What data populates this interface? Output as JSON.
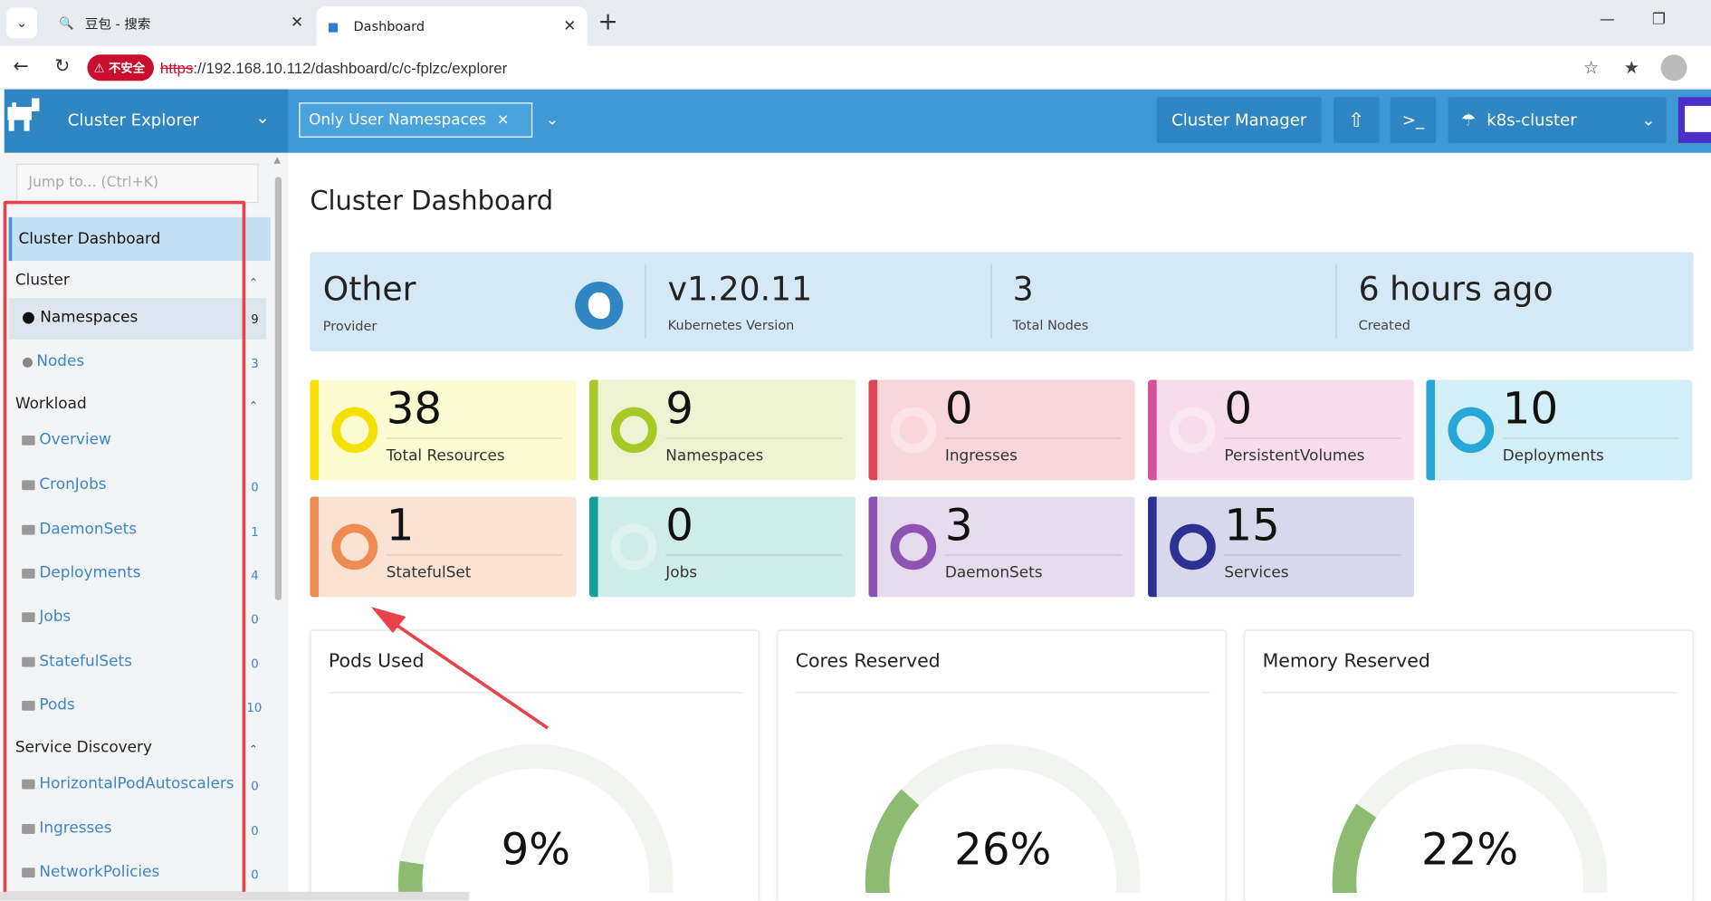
{
  "browser": {
    "tabs": [
      {
        "title": "豆包 - 搜索"
      },
      {
        "title": "Dashboard"
      }
    ],
    "url_scheme": "https",
    "url_rest": "://192.168.10.112/dashboard/c/c-fplzc/explorer",
    "insecure_label": "不安全"
  },
  "header": {
    "app_title": "Cluster Explorer",
    "namespace_filter": "Only User Namespaces",
    "cluster_manager": "Cluster Manager",
    "cluster_name": "k8s-cluster"
  },
  "sidebar": {
    "jump_placeholder": "Jump to... (Ctrl+K)",
    "active_item": "Cluster Dashboard",
    "groups": [
      {
        "label": "Cluster"
      },
      {
        "label": "Workload"
      },
      {
        "label": "Service Discovery"
      }
    ],
    "cluster_items": [
      {
        "label": "Namespaces",
        "count": "9"
      },
      {
        "label": "Nodes",
        "count": "3"
      }
    ],
    "workload_items": [
      {
        "label": "Overview",
        "count": ""
      },
      {
        "label": "CronJobs",
        "count": "0"
      },
      {
        "label": "DaemonSets",
        "count": "1"
      },
      {
        "label": "Deployments",
        "count": "4"
      },
      {
        "label": "Jobs",
        "count": "0"
      },
      {
        "label": "StatefulSets",
        "count": "0"
      },
      {
        "label": "Pods",
        "count": "10"
      }
    ],
    "discovery_items": [
      {
        "label": "HorizontalPodAutoscalers",
        "count": "0"
      },
      {
        "label": "Ingresses",
        "count": "0"
      },
      {
        "label": "NetworkPolicies",
        "count": "0"
      }
    ]
  },
  "main": {
    "title": "Cluster Dashboard",
    "info": [
      {
        "value": "Other",
        "label": "Provider"
      },
      {
        "value": "v1.20.11",
        "label": "Kubernetes Version"
      },
      {
        "value": "3",
        "label": "Total Nodes"
      },
      {
        "value": "6 hours ago",
        "label": "Created"
      }
    ],
    "cards": [
      {
        "value": "38",
        "label": "Total Resources",
        "color": "#f5e000",
        "bg": "#fdfbd2"
      },
      {
        "value": "9",
        "label": "Namespaces",
        "color": "#a6c926",
        "bg": "#eef4d3"
      },
      {
        "value": "0",
        "label": "Ingresses",
        "color": "#e04557",
        "bg": "#f8d6dc"
      },
      {
        "value": "0",
        "label": "PersistentVolumes",
        "color": "#d64f9c",
        "bg": "#f7dcec"
      },
      {
        "value": "10",
        "label": "Deployments",
        "color": "#27a7d8",
        "bg": "#d4eef7"
      },
      {
        "value": "1",
        "label": "StatefulSet",
        "color": "#ef8a51",
        "bg": "#fae2d5"
      },
      {
        "value": "0",
        "label": "Jobs",
        "color": "#159f95",
        "bg": "#d0ece8"
      },
      {
        "value": "3",
        "label": "DaemonSets",
        "color": "#8e54b3",
        "bg": "#e7dcee"
      },
      {
        "value": "15",
        "label": "Services",
        "color": "#2d3192",
        "bg": "#d7d8ec"
      }
    ],
    "gauges": [
      {
        "title": "Pods Used",
        "value": "9%",
        "fraction": 0.09
      },
      {
        "title": "Cores Reserved",
        "value": "26%",
        "fraction": 0.26
      },
      {
        "title": "Memory Reserved",
        "value": "22%",
        "fraction": 0.22
      }
    ]
  }
}
